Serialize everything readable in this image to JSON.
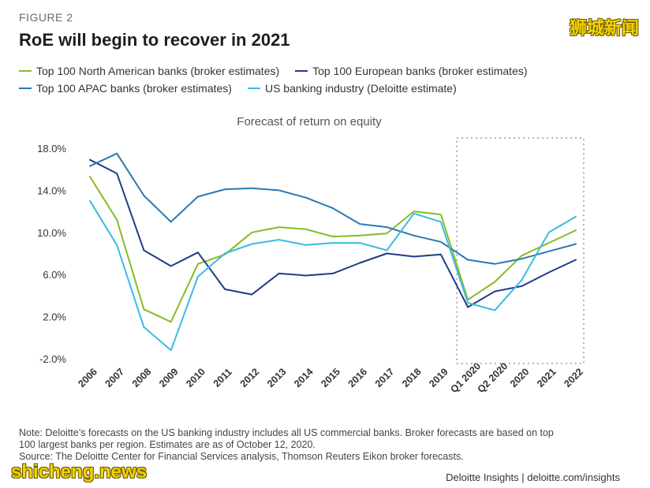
{
  "figure_label": "FIGURE 2",
  "title": "RoE will begin to recover in 2021",
  "watermark_top": "狮城新闻",
  "watermark_bottom": "shicheng.news",
  "footer_brand": "Deloitte Insights | deloitte.com/insights",
  "note_lines": [
    "Note: Deloitte’s forecasts on the US banking industry includes all US commercial banks. Broker forecasts are based on top",
    "100 largest banks per region. Estimates are as of October 12, 2020.",
    "Source: The Deloitte Center for Financial Services analysis, Thomson Reuters Eikon broker forecasts."
  ],
  "colors": {
    "north_america": "#86bc25",
    "europe": "#1f3c88",
    "apac": "#2a7aaf",
    "us_industry": "#3bbbe0",
    "forecast_box": "#999999",
    "axis_text": "#333333"
  },
  "chart_data": {
    "type": "line",
    "title": "Forecast of return on equity",
    "xlabel": "",
    "ylabel": "",
    "ylim": [
      -2,
      18
    ],
    "y_ticks": [
      "18.0%",
      "14.0%",
      "10.0%",
      "6.0%",
      "2.0%",
      "-2.0%"
    ],
    "y_tick_values": [
      18,
      14,
      10,
      6,
      2,
      -2
    ],
    "categories": [
      "2006",
      "2007",
      "2008",
      "2009",
      "2010",
      "2011",
      "2012",
      "2013",
      "2014",
      "2015",
      "2016",
      "2017",
      "2018",
      "2019",
      "Q1 2020",
      "Q2 2020",
      "2020",
      "2021",
      "2022"
    ],
    "forecast_range": [
      "Q1 2020",
      "2022"
    ],
    "series": [
      {
        "name": "Top 100 North American banks (broker estimates)",
        "color_key": "north_america",
        "values": [
          15.3,
          11.2,
          2.7,
          1.5,
          7.0,
          7.9,
          10.0,
          10.5,
          10.3,
          9.6,
          9.7,
          9.9,
          12.0,
          11.7,
          3.6,
          5.3,
          7.8,
          9.0,
          10.2
        ]
      },
      {
        "name": "Top 100 European banks (broker estimates)",
        "color_key": "europe",
        "values": [
          16.9,
          15.6,
          8.3,
          6.8,
          8.1,
          4.6,
          4.1,
          6.1,
          5.9,
          6.1,
          7.1,
          8.0,
          7.7,
          7.9,
          2.9,
          4.4,
          4.9,
          6.2,
          7.4
        ]
      },
      {
        "name": "Top 100 APAC banks (broker estimates)",
        "color_key": "apac",
        "values": [
          16.3,
          17.5,
          13.5,
          11.0,
          13.4,
          14.1,
          14.2,
          14.0,
          13.3,
          12.3,
          10.8,
          10.5,
          9.7,
          9.1,
          7.4,
          7.0,
          7.5,
          8.2,
          8.9
        ]
      },
      {
        "name": "US banking industry (Deloitte estimate)",
        "color_key": "us_industry",
        "values": [
          13.0,
          8.8,
          1.0,
          -1.2,
          5.8,
          8.0,
          8.9,
          9.3,
          8.8,
          9.0,
          9.0,
          8.3,
          11.8,
          11.0,
          3.3,
          2.6,
          5.5,
          10.0,
          11.5
        ]
      }
    ]
  }
}
